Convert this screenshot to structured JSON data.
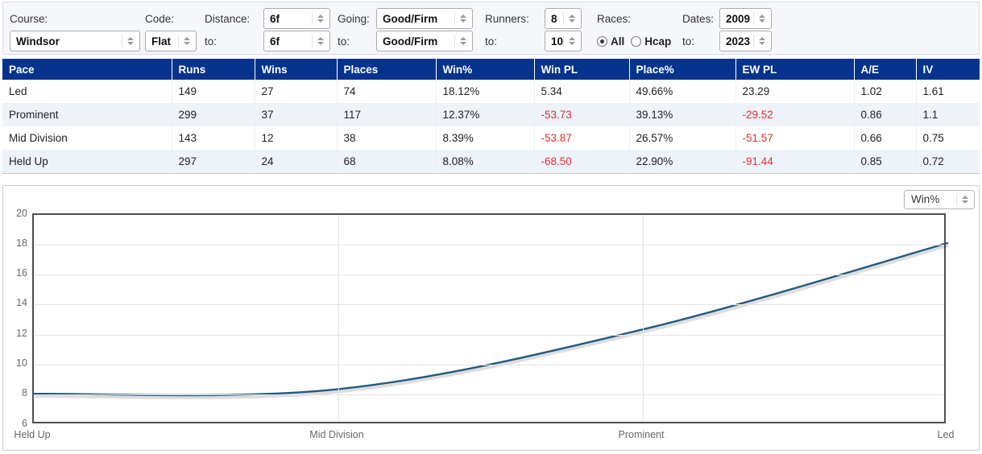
{
  "colors": {
    "header_bg": "#05338e",
    "row_alt": "#eef2f9",
    "negative": "#e23030",
    "line": "#235a7d",
    "grid": "#e4e4e4",
    "panel_bg": "#f5f7fb"
  },
  "filters": {
    "course": {
      "label": "Course:",
      "value": "Windsor"
    },
    "code": {
      "label": "Code:",
      "value": "Flat"
    },
    "distance": {
      "label": "Distance:",
      "to_label": "to:",
      "from": "6f",
      "to": "6f"
    },
    "going": {
      "label": "Going:",
      "to_label": "to:",
      "from": "Good/Firm",
      "to": "Good/Firm"
    },
    "runners": {
      "label": "Runners:",
      "to_label": "to:",
      "from": "8",
      "to": "10"
    },
    "races": {
      "label": "Races:",
      "options": [
        {
          "label": "All",
          "selected": true
        },
        {
          "label": "Hcap",
          "selected": false
        }
      ]
    },
    "dates": {
      "label": "Dates:",
      "to_label": "to:",
      "from": "2009",
      "to": "2023"
    }
  },
  "table": {
    "columns": [
      "Pace",
      "Runs",
      "Wins",
      "Places",
      "Win%",
      "Win PL",
      "Place%",
      "EW PL",
      "A/E",
      "IV"
    ],
    "rows": [
      [
        "Led",
        "149",
        "27",
        "74",
        "18.12%",
        "5.34",
        "49.66%",
        "23.29",
        "1.02",
        "1.61"
      ],
      [
        "Prominent",
        "299",
        "37",
        "117",
        "12.37%",
        "-53.73",
        "39.13%",
        "-29.52",
        "0.86",
        "1.1"
      ],
      [
        "Mid Division",
        "143",
        "12",
        "38",
        "8.39%",
        "-53.87",
        "26.57%",
        "-51.57",
        "0.66",
        "0.75"
      ],
      [
        "Held Up",
        "297",
        "24",
        "68",
        "8.08%",
        "-68.50",
        "22.90%",
        "-91.44",
        "0.85",
        "0.72"
      ]
    ]
  },
  "chart_data": {
    "type": "line",
    "metric_selector": "Win%",
    "categories": [
      "Held Up",
      "Mid Division",
      "Prominent",
      "Led"
    ],
    "series": [
      {
        "name": "Win%",
        "values": [
          8.08,
          8.39,
          12.37,
          18.12
        ]
      }
    ],
    "ylim": [
      6,
      20
    ],
    "ytick_step": 2,
    "grid": true,
    "line_color": "#235a7d",
    "smooth": true,
    "legend": "none"
  }
}
